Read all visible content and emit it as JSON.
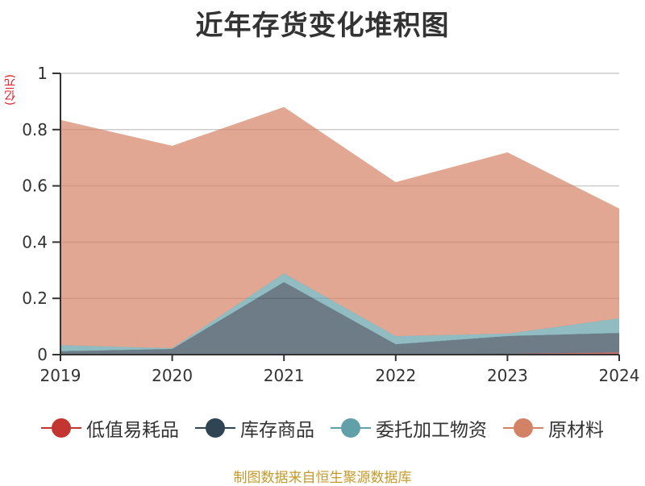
{
  "header": {
    "title": "近年存货变化堆积图"
  },
  "axis": {
    "unit_label": "(亿元)"
  },
  "footer": {
    "source": "制图数据来自恒生聚源数据库"
  },
  "legend": [
    {
      "label": "低值易耗品",
      "color": "#c23531"
    },
    {
      "label": "库存商品",
      "color": "#2f4554"
    },
    {
      "label": "委托加工物资",
      "color": "#61a0a8"
    },
    {
      "label": "原材料",
      "color": "#d48265"
    }
  ],
  "chart_data": {
    "type": "area",
    "stacked": true,
    "title": "近年存货变化堆积图",
    "xlabel": "",
    "ylabel": "(亿元)",
    "categories": [
      "2019",
      "2020",
      "2021",
      "2022",
      "2023",
      "2024"
    ],
    "ylim": [
      0,
      1
    ],
    "yticks": [
      0,
      0.2,
      0.4,
      0.6,
      0.8,
      1
    ],
    "ytick_labels": [
      "0",
      "0.2",
      "0.4",
      "0.6",
      "0.8",
      "1"
    ],
    "grid": true,
    "legend_position": "bottom",
    "series": [
      {
        "name": "低值易耗品",
        "color": "#c23531",
        "values": [
          0,
          0,
          0,
          0,
          0.003,
          0.008
        ]
      },
      {
        "name": "库存商品",
        "color": "#2f4554",
        "values": [
          0.012,
          0.02,
          0.258,
          0.037,
          0.063,
          0.069
        ]
      },
      {
        "name": "委托加工物资",
        "color": "#61a0a8",
        "values": [
          0.022,
          0.003,
          0.031,
          0.029,
          0.009,
          0.052
        ]
      },
      {
        "name": "原材料",
        "color": "#d48265",
        "values": [
          0.8,
          0.719,
          0.591,
          0.547,
          0.644,
          0.39
        ]
      }
    ]
  }
}
